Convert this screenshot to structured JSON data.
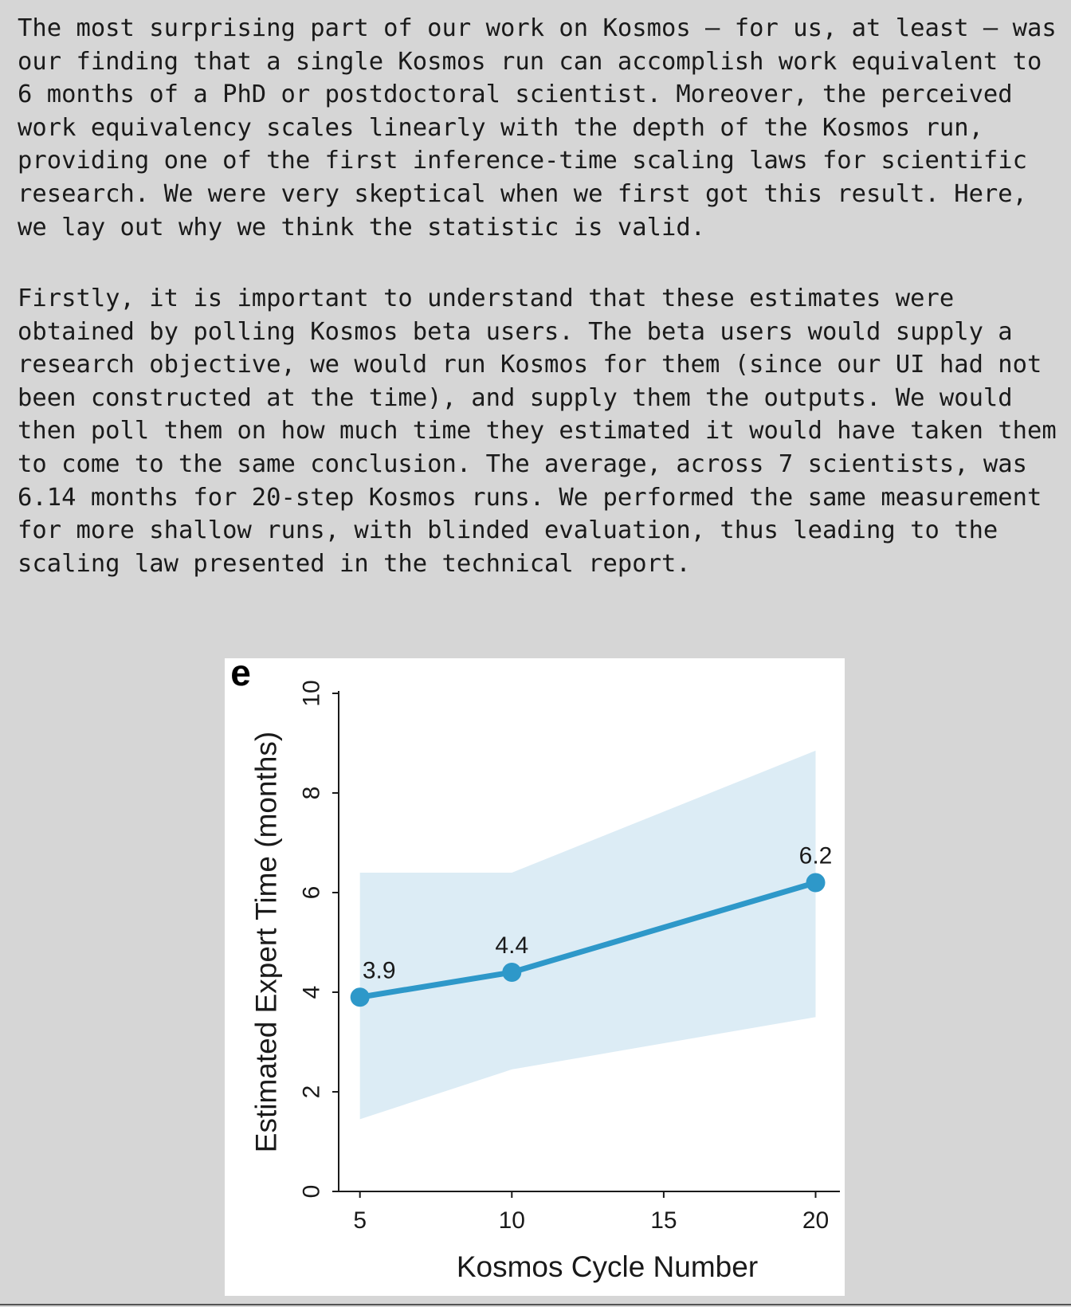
{
  "article": {
    "paragraph1": [
      "The most surprising part of our work on Kosmos — for us, at least — was",
      "our finding that a single Kosmos run can accomplish work equivalent to",
      "6 months of a PhD or postdoctoral scientist. Moreover, the perceived",
      "work equivalency scales linearly with the depth of the Kosmos run,",
      "providing one of the first inference-time scaling laws for scientific",
      "research. We were very skeptical when we first got this result. Here,",
      "we lay out why we think the statistic is valid."
    ],
    "paragraph2": [
      "Firstly, it is important to understand that these estimates were",
      "obtained by polling Kosmos beta users. The beta users would supply a",
      "research objective, we would run Kosmos for them (since our UI had not",
      "been constructed at the time), and supply them the outputs. We would",
      "then poll them on how much time they estimated it would have taken them",
      "to come to the same conclusion. The average, across 7 scientists, was",
      "6.14 months for 20-step Kosmos runs. We performed the same measurement",
      "for more shallow runs, with blinded evaluation, thus leading to the",
      "scaling law presented in the technical report."
    ]
  },
  "chart_data": {
    "type": "line",
    "panel_label": "e",
    "xlabel": "Kosmos Cycle Number",
    "ylabel": "Estimated Expert Time (months)",
    "x": [
      5,
      10,
      20
    ],
    "y": [
      3.9,
      4.4,
      6.2
    ],
    "data_labels": [
      "3.9",
      "4.4",
      "6.2"
    ],
    "band_upper": [
      6.4,
      6.4,
      8.85
    ],
    "band_lower": [
      1.45,
      2.45,
      3.5
    ],
    "xlim": [
      4.3,
      20.8
    ],
    "ylim": [
      0,
      10
    ],
    "xticks": [
      5,
      10,
      15,
      20
    ],
    "yticks": [
      0,
      2,
      4,
      6,
      8,
      10
    ],
    "grid": false,
    "colors": {
      "line": "#2e98c9",
      "band": "#dcecf5",
      "axis": "#1a1a1a"
    }
  }
}
